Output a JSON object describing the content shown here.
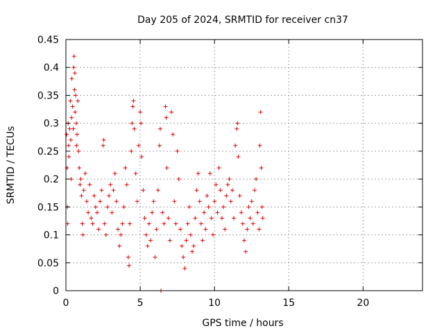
{
  "chart_data": {
    "type": "scatter",
    "title": "Day 205 of 2024, SRMTID for receiver cn37",
    "xlabel": "GPS time / hours",
    "ylabel": "SRMTID / TECUs",
    "xlim": [
      0,
      24
    ],
    "ylim": [
      0,
      0.45
    ],
    "xticks": [
      0,
      5,
      10,
      15,
      20
    ],
    "xtick_labels": [
      "0",
      "5",
      "10",
      "15",
      "20"
    ],
    "yticks": [
      0,
      0.05,
      0.1,
      0.15,
      0.2,
      0.25,
      0.3,
      0.35,
      0.4,
      0.45
    ],
    "ytick_labels": [
      "0",
      "0.05",
      "0.1",
      "0.15",
      "0.2",
      "0.25",
      "0.3",
      "0.35",
      "0.4",
      "0.45"
    ],
    "grid": true,
    "marker": "+",
    "marker_color": "#e00000",
    "series": [
      {
        "name": "SRMTID",
        "points": [
          [
            0.05,
            0.28
          ],
          [
            0.08,
            0.22
          ],
          [
            0.1,
            0.15
          ],
          [
            0.12,
            0.12
          ],
          [
            0.15,
            0.3
          ],
          [
            0.18,
            0.26
          ],
          [
            0.2,
            0.24
          ],
          [
            0.25,
            0.29
          ],
          [
            0.3,
            0.34
          ],
          [
            0.33,
            0.27
          ],
          [
            0.35,
            0.2
          ],
          [
            0.38,
            0.31
          ],
          [
            0.4,
            0.38
          ],
          [
            0.45,
            0.33
          ],
          [
            0.5,
            0.29
          ],
          [
            0.52,
            0.4
          ],
          [
            0.55,
            0.42
          ],
          [
            0.58,
            0.36
          ],
          [
            0.6,
            0.39
          ],
          [
            0.62,
            0.32
          ],
          [
            0.65,
            0.35
          ],
          [
            0.7,
            0.3
          ],
          [
            0.72,
            0.26
          ],
          [
            0.75,
            0.28
          ],
          [
            0.8,
            0.34
          ],
          [
            0.85,
            0.25
          ],
          [
            0.9,
            0.22
          ],
          [
            0.95,
            0.19
          ],
          [
            1.0,
            0.2
          ],
          [
            1.05,
            0.17
          ],
          [
            1.1,
            0.12
          ],
          [
            1.15,
            0.1
          ],
          [
            1.2,
            0.18
          ],
          [
            1.3,
            0.21
          ],
          [
            1.4,
            0.16
          ],
          [
            1.5,
            0.14
          ],
          [
            1.6,
            0.19
          ],
          [
            1.7,
            0.13
          ],
          [
            1.8,
            0.12
          ],
          [
            1.9,
            0.17
          ],
          [
            2.0,
            0.15
          ],
          [
            2.1,
            0.14
          ],
          [
            2.2,
            0.11
          ],
          [
            2.3,
            0.16
          ],
          [
            2.4,
            0.18
          ],
          [
            2.5,
            0.26
          ],
          [
            2.55,
            0.27
          ],
          [
            2.6,
            0.12
          ],
          [
            2.7,
            0.1
          ],
          [
            2.8,
            0.15
          ],
          [
            2.9,
            0.17
          ],
          [
            3.0,
            0.19
          ],
          [
            3.1,
            0.14
          ],
          [
            3.2,
            0.18
          ],
          [
            3.3,
            0.21
          ],
          [
            3.4,
            0.16
          ],
          [
            3.5,
            0.11
          ],
          [
            3.6,
            0.08
          ],
          [
            3.7,
            0.1
          ],
          [
            3.8,
            0.12
          ],
          [
            3.9,
            0.15
          ],
          [
            4.0,
            0.22
          ],
          [
            4.1,
            0.19
          ],
          [
            4.2,
            0.06
          ],
          [
            4.25,
            0.045
          ],
          [
            4.3,
            0.12
          ],
          [
            4.4,
            0.25
          ],
          [
            4.45,
            0.3
          ],
          [
            4.5,
            0.33
          ],
          [
            4.55,
            0.34
          ],
          [
            4.6,
            0.29
          ],
          [
            4.7,
            0.21
          ],
          [
            4.8,
            0.16
          ],
          [
            4.9,
            0.26
          ],
          [
            5.0,
            0.32
          ],
          [
            5.05,
            0.3
          ],
          [
            5.1,
            0.24
          ],
          [
            5.2,
            0.18
          ],
          [
            5.3,
            0.13
          ],
          [
            5.4,
            0.1
          ],
          [
            5.5,
            0.08
          ],
          [
            5.6,
            0.12
          ],
          [
            5.7,
            0.09
          ],
          [
            5.8,
            0.14
          ],
          [
            5.9,
            0.16
          ],
          [
            6.0,
            0.06
          ],
          [
            6.1,
            0.11
          ],
          [
            6.2,
            0.18
          ],
          [
            6.3,
            0.26
          ],
          [
            6.35,
            0.29
          ],
          [
            6.4,
            0.0
          ],
          [
            6.5,
            0.14
          ],
          [
            6.6,
            0.12
          ],
          [
            6.7,
            0.33
          ],
          [
            6.75,
            0.31
          ],
          [
            6.8,
            0.22
          ],
          [
            6.9,
            0.13
          ],
          [
            7.0,
            0.09
          ],
          [
            7.1,
            0.32
          ],
          [
            7.2,
            0.28
          ],
          [
            7.3,
            0.16
          ],
          [
            7.4,
            0.12
          ],
          [
            7.5,
            0.25
          ],
          [
            7.6,
            0.2
          ],
          [
            7.7,
            0.11
          ],
          [
            7.8,
            0.08
          ],
          [
            7.9,
            0.06
          ],
          [
            8.0,
            0.04
          ],
          [
            8.1,
            0.09
          ],
          [
            8.2,
            0.12
          ],
          [
            8.3,
            0.15
          ],
          [
            8.4,
            0.1
          ],
          [
            8.5,
            0.07
          ],
          [
            8.6,
            0.08
          ],
          [
            8.7,
            0.13
          ],
          [
            8.8,
            0.18
          ],
          [
            8.9,
            0.21
          ],
          [
            9.0,
            0.16
          ],
          [
            9.1,
            0.12
          ],
          [
            9.2,
            0.09
          ],
          [
            9.3,
            0.14
          ],
          [
            9.4,
            0.11
          ],
          [
            9.5,
            0.17
          ],
          [
            9.6,
            0.15
          ],
          [
            9.7,
            0.21
          ],
          [
            9.8,
            0.13
          ],
          [
            9.9,
            0.1
          ],
          [
            10.0,
            0.16
          ],
          [
            10.1,
            0.19
          ],
          [
            10.2,
            0.14
          ],
          [
            10.3,
            0.22
          ],
          [
            10.4,
            0.18
          ],
          [
            10.5,
            0.13
          ],
          [
            10.6,
            0.15
          ],
          [
            10.7,
            0.11
          ],
          [
            10.8,
            0.17
          ],
          [
            10.9,
            0.19
          ],
          [
            11.0,
            0.2
          ],
          [
            11.1,
            0.16
          ],
          [
            11.2,
            0.18
          ],
          [
            11.3,
            0.13
          ],
          [
            11.4,
            0.26
          ],
          [
            11.5,
            0.29
          ],
          [
            11.55,
            0.3
          ],
          [
            11.6,
            0.24
          ],
          [
            11.7,
            0.17
          ],
          [
            11.8,
            0.14
          ],
          [
            11.9,
            0.12
          ],
          [
            12.0,
            0.09
          ],
          [
            12.1,
            0.07
          ],
          [
            12.2,
            0.11
          ],
          [
            12.3,
            0.15
          ],
          [
            12.4,
            0.13
          ],
          [
            12.5,
            0.16
          ],
          [
            12.6,
            0.12
          ],
          [
            12.7,
            0.18
          ],
          [
            12.8,
            0.2
          ],
          [
            12.9,
            0.14
          ],
          [
            13.0,
            0.11
          ],
          [
            13.05,
            0.26
          ],
          [
            13.1,
            0.32
          ],
          [
            13.15,
            0.22
          ],
          [
            13.2,
            0.15
          ],
          [
            13.25,
            0.13
          ]
        ]
      }
    ]
  }
}
